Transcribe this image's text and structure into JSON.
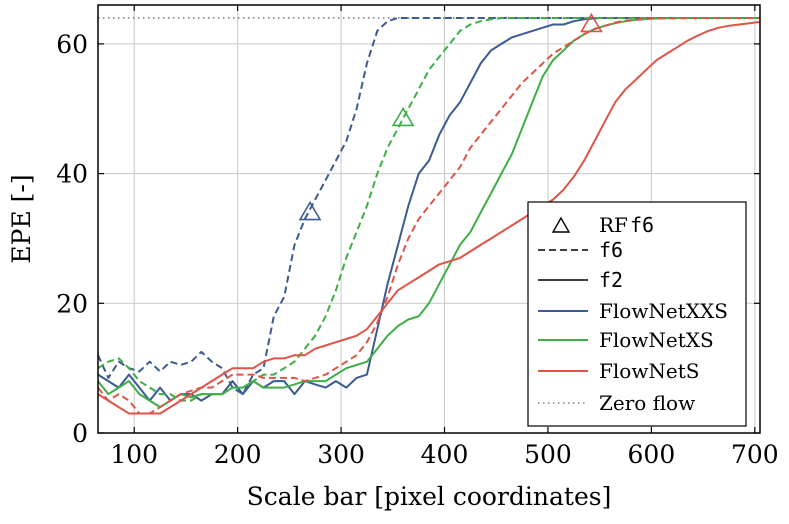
{
  "chart_data": {
    "type": "line",
    "xlabel": "Scale bar [pixel coordinates]",
    "ylabel": "EPE [-]",
    "xlim": [
      65,
      705
    ],
    "ylim": [
      0,
      66
    ],
    "x_ticks": [
      100,
      200,
      300,
      400,
      500,
      600,
      700
    ],
    "y_ticks": [
      0,
      20,
      40,
      60
    ],
    "x_tick_labels": [
      "100",
      "200",
      "300",
      "400",
      "500",
      "600",
      "700"
    ],
    "y_tick_labels": [
      "0",
      "20",
      "40",
      "60"
    ],
    "grid": true,
    "legend_position": "bottom-right",
    "legend": [
      {
        "label": "RF",
        "code": "f6",
        "style": "triangle-marker"
      },
      {
        "label": "",
        "code": "f6",
        "style": "dashed"
      },
      {
        "label": "",
        "code": "f2",
        "style": "solid"
      },
      {
        "label": "FlowNetXXS",
        "code": "",
        "style": "solid",
        "color": "#3b5b92"
      },
      {
        "label": "FlowNetXS",
        "code": "",
        "style": "solid",
        "color": "#3daf45"
      },
      {
        "label": "FlowNetS",
        "code": "",
        "style": "solid",
        "color": "#de5448"
      },
      {
        "label": "Zero flow",
        "code": "",
        "style": "dotted",
        "color": "#7a8290"
      }
    ],
    "colors": {
      "FlowNetXXS": "#3b5b92",
      "FlowNetXS": "#3daf45",
      "FlowNetS": "#de5448",
      "zero": "#7a8290"
    },
    "zero_flow": 64,
    "rf_markers": [
      {
        "series": "FlowNetXXS",
        "x": 270,
        "y": 34
      },
      {
        "series": "FlowNetXS",
        "x": 360,
        "y": 48.5
      },
      {
        "series": "FlowNetS",
        "x": 542,
        "y": 63
      }
    ],
    "series": [
      {
        "model": "FlowNetXXS",
        "style": "dashed",
        "x": [
          65,
          75,
          85,
          95,
          105,
          115,
          125,
          135,
          145,
          155,
          165,
          175,
          185,
          195,
          205,
          215,
          225,
          235,
          245,
          255,
          265,
          275,
          285,
          295,
          305,
          315,
          325,
          335,
          345,
          355,
          365,
          375,
          385,
          395,
          405,
          415,
          425,
          435,
          445,
          455,
          475,
          500,
          525,
          550,
          600,
          650,
          705
        ],
        "y": [
          12,
          8.5,
          11,
          10,
          9.5,
          11,
          9.5,
          11,
          10.5,
          11,
          12.5,
          11,
          10,
          7,
          6,
          9,
          10,
          18,
          21,
          29,
          33,
          36,
          39,
          42,
          45,
          50,
          57,
          62,
          63.5,
          64,
          64,
          64,
          64,
          64,
          64,
          64,
          64,
          64,
          64,
          64,
          64,
          64,
          64,
          64,
          64,
          64,
          64
        ]
      },
      {
        "model": "FlowNetXXS",
        "style": "solid",
        "x": [
          65,
          75,
          85,
          95,
          105,
          115,
          125,
          135,
          145,
          155,
          165,
          175,
          185,
          195,
          205,
          215,
          225,
          235,
          245,
          255,
          265,
          275,
          285,
          295,
          305,
          315,
          325,
          335,
          345,
          355,
          365,
          375,
          385,
          395,
          405,
          415,
          425,
          435,
          445,
          455,
          465,
          475,
          485,
          495,
          505,
          515,
          525,
          535,
          550,
          600,
          650,
          705
        ],
        "y": [
          9,
          8,
          7,
          9,
          7,
          5,
          7,
          5,
          6,
          6,
          5,
          6,
          6,
          8,
          6,
          8,
          7,
          8,
          8,
          6,
          8,
          7.5,
          7,
          8,
          7,
          8.5,
          9,
          16,
          23,
          29,
          35,
          40,
          42,
          46,
          49,
          51,
          54,
          57,
          59,
          60,
          61,
          61.5,
          62,
          62.5,
          63,
          63,
          63.5,
          63.8,
          64,
          64,
          64,
          64
        ]
      },
      {
        "model": "FlowNetXS",
        "style": "dashed",
        "x": [
          65,
          75,
          85,
          95,
          105,
          115,
          125,
          135,
          145,
          155,
          165,
          175,
          185,
          195,
          205,
          215,
          225,
          235,
          245,
          255,
          265,
          275,
          285,
          295,
          305,
          315,
          325,
          335,
          345,
          355,
          365,
          375,
          385,
          395,
          405,
          415,
          425,
          435,
          445,
          455,
          475,
          500,
          550,
          600,
          650,
          705
        ],
        "y": [
          10,
          11,
          11.5,
          10,
          8,
          7,
          6,
          6,
          5,
          5,
          6,
          6,
          6,
          7,
          7,
          8,
          9,
          9,
          10,
          11,
          13,
          15,
          18,
          22,
          27,
          31,
          35,
          40,
          44,
          47,
          50,
          53,
          56,
          58,
          60,
          62,
          63,
          63.5,
          63.8,
          64,
          64,
          64,
          64,
          64,
          64,
          64
        ]
      },
      {
        "model": "FlowNetXS",
        "style": "solid",
        "x": [
          65,
          75,
          85,
          95,
          105,
          115,
          125,
          135,
          145,
          155,
          165,
          175,
          185,
          195,
          205,
          215,
          225,
          235,
          245,
          255,
          265,
          275,
          285,
          295,
          305,
          315,
          325,
          335,
          345,
          355,
          365,
          375,
          385,
          395,
          405,
          415,
          425,
          435,
          445,
          455,
          465,
          475,
          485,
          495,
          505,
          515,
          525,
          535,
          545,
          555,
          565,
          575,
          585,
          600,
          625,
          650,
          705
        ],
        "y": [
          8,
          6,
          7,
          8,
          6,
          5,
          4,
          5,
          6,
          5.5,
          6,
          6,
          6,
          7,
          7,
          8,
          7,
          7,
          7,
          7.5,
          8,
          8,
          8,
          9,
          10,
          10.5,
          11,
          13,
          15,
          16.5,
          17.5,
          18,
          20,
          23,
          26,
          29,
          31,
          34,
          37,
          40,
          43,
          47,
          51,
          55,
          57.5,
          59,
          60.5,
          61.5,
          62.3,
          62.8,
          63.2,
          63.5,
          63.7,
          63.9,
          64,
          64,
          64
        ]
      },
      {
        "model": "FlowNetS",
        "style": "dashed",
        "x": [
          65,
          75,
          85,
          95,
          105,
          115,
          125,
          135,
          145,
          155,
          165,
          175,
          185,
          195,
          205,
          215,
          225,
          235,
          245,
          255,
          265,
          275,
          285,
          295,
          305,
          315,
          325,
          335,
          345,
          355,
          365,
          375,
          385,
          395,
          405,
          415,
          425,
          435,
          445,
          455,
          465,
          475,
          485,
          495,
          505,
          515,
          525,
          535,
          545,
          555,
          565,
          575,
          600,
          650,
          705
        ],
        "y": [
          7,
          5,
          6,
          5,
          3,
          3,
          4,
          5,
          6,
          6.5,
          7,
          7,
          8,
          9,
          9,
          9,
          8.5,
          8.5,
          8.5,
          8.5,
          8,
          8.5,
          9,
          10,
          11,
          12,
          14,
          17,
          21,
          26,
          30,
          33,
          35,
          37,
          39,
          41,
          44,
          46,
          48,
          50,
          52,
          54,
          55.5,
          57,
          58.5,
          59.5,
          60.5,
          61.5,
          62.3,
          62.8,
          63.3,
          63.6,
          63.9,
          64,
          64
        ]
      },
      {
        "model": "FlowNetS",
        "style": "solid",
        "x": [
          65,
          75,
          85,
          95,
          105,
          115,
          125,
          135,
          145,
          155,
          165,
          175,
          185,
          195,
          205,
          215,
          225,
          235,
          245,
          255,
          265,
          275,
          285,
          295,
          305,
          315,
          325,
          335,
          345,
          355,
          365,
          375,
          385,
          395,
          405,
          415,
          425,
          435,
          445,
          455,
          465,
          475,
          485,
          495,
          505,
          515,
          525,
          535,
          545,
          555,
          565,
          575,
          585,
          595,
          605,
          615,
          625,
          635,
          645,
          655,
          665,
          675,
          685,
          695,
          705
        ],
        "y": [
          6,
          5,
          4,
          3,
          3,
          3,
          3,
          4,
          5,
          6,
          7,
          8,
          9,
          10,
          10,
          10,
          11,
          11.5,
          11.5,
          12,
          12,
          13,
          13.5,
          14,
          14.5,
          15,
          16,
          18,
          20,
          22,
          23,
          24,
          25,
          26,
          26.5,
          27,
          28,
          29,
          30,
          31,
          32,
          33,
          34,
          35,
          36,
          37.5,
          39.5,
          42,
          45,
          48,
          51,
          53,
          54.5,
          56,
          57.5,
          58.5,
          59.5,
          60.5,
          61.3,
          62,
          62.5,
          62.8,
          63,
          63.2,
          63.4
        ]
      }
    ]
  }
}
